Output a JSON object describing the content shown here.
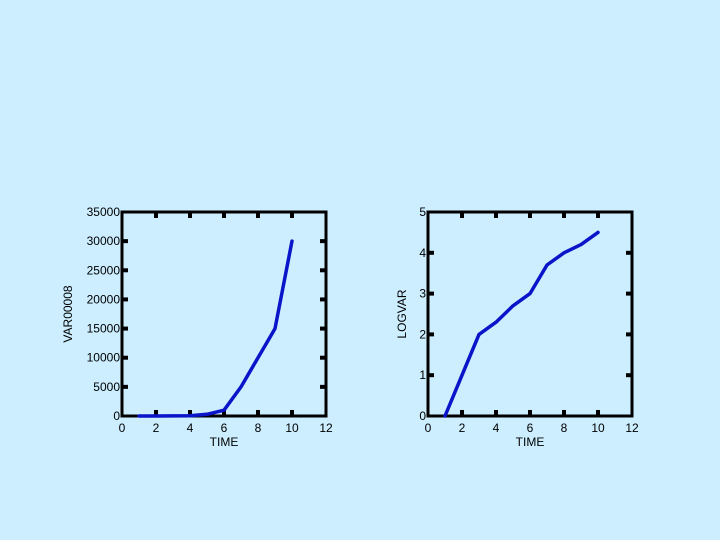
{
  "page": {
    "background": "#cceeff"
  },
  "chart_data": [
    {
      "type": "line",
      "title": "",
      "xlabel": "TIME",
      "ylabel": "VAR00008",
      "xlim": [
        0,
        12
      ],
      "ylim": [
        0,
        35000
      ],
      "x_ticks": [
        0,
        2,
        4,
        6,
        8,
        10,
        12
      ],
      "y_ticks": [
        0,
        5000,
        10000,
        15000,
        20000,
        25000,
        30000,
        35000
      ],
      "grid": false,
      "line_color": "#0a14c8",
      "series": [
        {
          "x": [
            1,
            2,
            3,
            4,
            5,
            6,
            7,
            8,
            9,
            10
          ],
          "y": [
            0,
            0,
            10,
            50,
            300,
            1000,
            5000,
            10000,
            15000,
            30000
          ]
        }
      ]
    },
    {
      "type": "line",
      "title": "",
      "xlabel": "TIME",
      "ylabel": "LOGVAR",
      "xlim": [
        0,
        12
      ],
      "ylim": [
        0,
        5
      ],
      "x_ticks": [
        0,
        2,
        4,
        6,
        8,
        10,
        12
      ],
      "y_ticks": [
        0,
        1,
        2,
        3,
        4,
        5
      ],
      "grid": false,
      "line_color": "#0a14c8",
      "series": [
        {
          "x": [
            1,
            2,
            3,
            4,
            5,
            6,
            7,
            8,
            9,
            10
          ],
          "y": [
            0,
            1.0,
            2.0,
            2.3,
            2.7,
            3.0,
            3.7,
            4.0,
            4.2,
            4.5
          ]
        }
      ]
    }
  ]
}
